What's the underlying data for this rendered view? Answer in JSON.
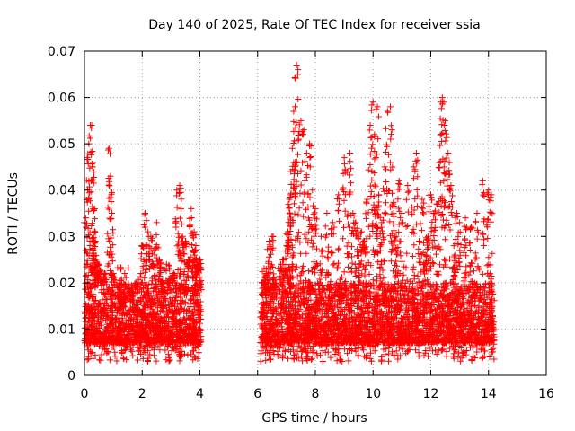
{
  "chart_data": {
    "type": "scatter",
    "title": "Day 140 of 2025, Rate Of TEC Index for receiver ssia",
    "xlabel": "GPS time / hours",
    "ylabel": "ROTI / TECUs",
    "xlim": [
      0,
      16
    ],
    "ylim": [
      0,
      0.07
    ],
    "xticks": [
      0,
      2,
      4,
      6,
      8,
      10,
      12,
      14,
      16
    ],
    "yticks": [
      0,
      0.01,
      0.02,
      0.03,
      0.04,
      0.05,
      0.06,
      0.07
    ],
    "ytick_labels": [
      "0",
      "0.01",
      "0.02",
      "0.03",
      "0.04",
      "0.05",
      "0.06",
      "0.07"
    ],
    "grid": true,
    "marker": "plus",
    "color": "#ff0000",
    "series": [
      {
        "name": "ROTI",
        "segments": [
          {
            "x_range": [
              0.0,
              4.05
            ],
            "core_range": [
              0.005,
              0.02
            ]
          },
          {
            "x_range": [
              6.1,
              14.2
            ],
            "core_range": [
              0.005,
              0.02
            ]
          }
        ],
        "x": [
          0.05,
          0.1,
          0.15,
          0.2,
          0.25,
          0.28,
          0.3,
          0.32,
          0.35,
          0.4,
          0.45,
          0.5,
          0.6,
          0.7,
          0.85,
          0.9,
          0.95,
          1.0,
          1.2,
          1.4,
          1.6,
          1.8,
          2.0,
          2.1,
          2.2,
          2.3,
          2.4,
          2.5,
          2.6,
          2.7,
          2.9,
          3.1,
          3.2,
          3.3,
          3.35,
          3.4,
          3.5,
          3.6,
          3.7,
          3.8,
          3.85,
          3.9,
          4.0,
          6.2,
          6.3,
          6.4,
          6.5,
          6.6,
          6.8,
          6.9,
          7.0,
          7.05,
          7.1,
          7.15,
          7.2,
          7.25,
          7.3,
          7.35,
          7.4,
          7.5,
          7.6,
          7.7,
          7.8,
          7.9,
          8.0,
          8.2,
          8.4,
          8.6,
          8.8,
          9.0,
          9.1,
          9.2,
          9.3,
          9.4,
          9.5,
          9.6,
          9.7,
          9.8,
          9.9,
          10.0,
          10.05,
          10.1,
          10.15,
          10.2,
          10.3,
          10.4,
          10.5,
          10.6,
          10.65,
          10.7,
          10.8,
          10.9,
          11.0,
          11.2,
          11.4,
          11.5,
          11.6,
          11.7,
          11.8,
          11.9,
          12.0,
          12.1,
          12.2,
          12.3,
          12.35,
          12.4,
          12.45,
          12.5,
          12.6,
          12.7,
          12.8,
          12.9,
          13.0,
          13.2,
          13.4,
          13.6,
          13.8,
          14.0,
          14.1
        ],
        "y": [
          0.034,
          0.047,
          0.05,
          0.054,
          0.054,
          0.045,
          0.036,
          0.029,
          0.031,
          0.025,
          0.022,
          0.024,
          0.02,
          0.022,
          0.049,
          0.043,
          0.035,
          0.022,
          0.018,
          0.017,
          0.016,
          0.019,
          0.028,
          0.035,
          0.031,
          0.03,
          0.027,
          0.033,
          0.025,
          0.018,
          0.02,
          0.022,
          0.04,
          0.041,
          0.036,
          0.03,
          0.029,
          0.025,
          0.036,
          0.031,
          0.027,
          0.024,
          0.025,
          0.02,
          0.022,
          0.029,
          0.03,
          0.019,
          0.024,
          0.025,
          0.028,
          0.031,
          0.038,
          0.044,
          0.049,
          0.057,
          0.058,
          0.067,
          0.066,
          0.055,
          0.053,
          0.048,
          0.05,
          0.04,
          0.036,
          0.03,
          0.035,
          0.033,
          0.039,
          0.047,
          0.044,
          0.048,
          0.035,
          0.033,
          0.03,
          0.031,
          0.029,
          0.038,
          0.054,
          0.059,
          0.052,
          0.047,
          0.058,
          0.039,
          0.033,
          0.045,
          0.057,
          0.058,
          0.053,
          0.037,
          0.03,
          0.042,
          0.035,
          0.041,
          0.045,
          0.048,
          0.029,
          0.038,
          0.026,
          0.03,
          0.039,
          0.035,
          0.037,
          0.046,
          0.059,
          0.06,
          0.059,
          0.055,
          0.048,
          0.041,
          0.028,
          0.035,
          0.033,
          0.034,
          0.032,
          0.035,
          0.042,
          0.04,
          0.039
        ]
      }
    ]
  }
}
